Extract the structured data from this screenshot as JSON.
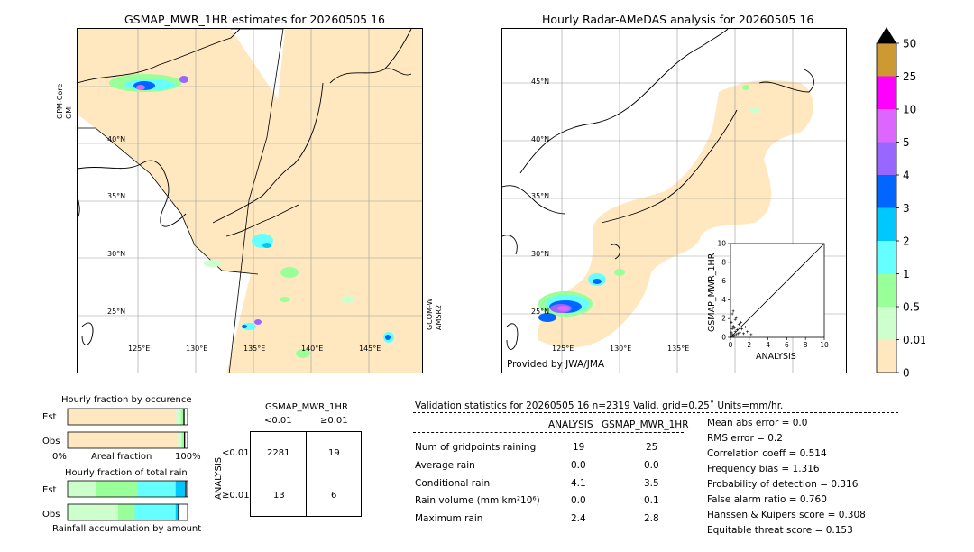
{
  "left_map": {
    "title": "GSMAP_MWR_1HR estimates for 20260505 16",
    "side_label_left_1": "GPM-Core",
    "side_label_left_2": "GMI",
    "side_label_right_1": "GCOM-W",
    "side_label_right_2": "AMSR2",
    "lat_labels": [
      "40°N",
      "35°N",
      "30°N",
      "25°N"
    ],
    "lon_labels": [
      "125°E",
      "130°E",
      "135°E",
      "140°E",
      "145°E"
    ]
  },
  "right_map": {
    "title": "Hourly Radar-AMeDAS analysis for 20260505 16",
    "credit": "Provided by JWA/JMA",
    "lat_labels": [
      "45°N",
      "40°N",
      "35°N",
      "30°N",
      "25°N"
    ],
    "lon_labels": [
      "125°E",
      "130°E",
      "135°E"
    ]
  },
  "colorbar": {
    "labels": [
      "50",
      "25",
      "10",
      "5",
      "4",
      "3",
      "2",
      "1",
      "0.5",
      "0.01",
      "0"
    ],
    "colors": [
      "#cc9933",
      "#ff00ff",
      "#dd66ff",
      "#9966ff",
      "#0066ff",
      "#00c8ff",
      "#66ffff",
      "#99ff99",
      "#ccffcc",
      "#ffe8c0"
    ],
    "over_color": "#000000"
  },
  "chart_data": [
    {
      "type": "scatter",
      "title": "",
      "xlabel": "ANALYSIS",
      "ylabel": "GSMAP_MWR_1HR",
      "xlim": [
        0,
        10
      ],
      "ylim": [
        0,
        10
      ],
      "xticks": [
        "0",
        "2",
        "4",
        "6",
        "8",
        "10"
      ],
      "yticks": [
        "0",
        "2",
        "4",
        "6",
        "8",
        "10"
      ],
      "points": [
        [
          0.1,
          0.1
        ],
        [
          0.2,
          0.3
        ],
        [
          0.3,
          0.1
        ],
        [
          0.1,
          0.5
        ],
        [
          0.4,
          0.2
        ],
        [
          0.5,
          0.6
        ],
        [
          0.2,
          0.9
        ],
        [
          0.6,
          0.3
        ],
        [
          0.8,
          0.4
        ],
        [
          0.3,
          1.2
        ],
        [
          0.1,
          1.6
        ],
        [
          0.7,
          0.8
        ],
        [
          1.0,
          0.5
        ],
        [
          0.4,
          1.0
        ],
        [
          1.2,
          0.9
        ],
        [
          0.9,
          1.4
        ],
        [
          0.5,
          1.9
        ],
        [
          1.4,
          0.4
        ],
        [
          0.2,
          2.5
        ],
        [
          1.6,
          1.1
        ],
        [
          1.8,
          0.6
        ],
        [
          0.3,
          2.8
        ],
        [
          1.1,
          1.6
        ],
        [
          2.2,
          0.3
        ],
        [
          0.6,
          2.1
        ]
      ]
    },
    {
      "type": "bar",
      "title": "Hourly fraction by occurence",
      "categories": [
        "Est",
        "Obs"
      ],
      "xlabel": "Areal fraction",
      "xtick_left": "0%",
      "xtick_right": "100%",
      "series": [
        {
          "color": "#ffe8c0",
          "values": [
            0.905,
            0.92
          ]
        },
        {
          "color": "#ccffcc",
          "values": [
            0.04,
            0.03
          ]
        },
        {
          "color": "#99ff99",
          "values": [
            0.02,
            0.02
          ]
        },
        {
          "color": "#000000",
          "values": [
            0.01,
            0.01
          ]
        }
      ]
    },
    {
      "type": "bar",
      "title": "Hourly fraction of total rain",
      "categories": [
        "Est",
        "Obs"
      ],
      "xlabel": "Rainfall accumulation by amount",
      "series": [
        {
          "color": "#ccffcc",
          "values": [
            0.24,
            0.42
          ]
        },
        {
          "color": "#99ff99",
          "values": [
            0.34,
            0.14
          ]
        },
        {
          "color": "#66ffff",
          "values": [
            0.32,
            0.34
          ]
        },
        {
          "color": "#00c8ff",
          "values": [
            0.08,
            0.02
          ]
        },
        {
          "color": "#000000",
          "values": [
            0.01,
            0.01
          ]
        }
      ]
    }
  ],
  "contingency": {
    "title": "GSMAP_MWR_1HR",
    "col_labels": [
      "<0.01",
      "≥0.01"
    ],
    "row_axis_label": "ANALYSIS",
    "row_labels": [
      "<0.01",
      "≥0.01"
    ],
    "cells": [
      [
        "2281",
        "19"
      ],
      [
        "13",
        "6"
      ]
    ]
  },
  "validation": {
    "header": "Validation statistics for 20260505 16  n=2319 Valid. grid=0.25˚ Units=mm/hr.",
    "col_analysis": "ANALYSIS",
    "col_gsmap": "GSMAP_MWR_1HR",
    "rows": [
      {
        "label": "Num of gridpoints raining",
        "analysis": "19",
        "gsmap": "25"
      },
      {
        "label": "Average rain",
        "analysis": "0.0",
        "gsmap": "0.0"
      },
      {
        "label": "Conditional rain",
        "analysis": "4.1",
        "gsmap": "3.5"
      },
      {
        "label": "Rain volume (mm km²10⁶)",
        "analysis": "0.0",
        "gsmap": "0.1"
      },
      {
        "label": "Maximum rain",
        "analysis": "2.4",
        "gsmap": "2.8"
      }
    ],
    "scores": [
      "Mean abs error =    0.0",
      "RMS error =    0.2",
      "Correlation coeff =  0.514",
      "Frequency bias =  1.316",
      "Probability of detection =  0.316",
      "False alarm ratio =  0.760",
      "Hanssen & Kuipers score =  0.308",
      "Equitable threat score =  0.153"
    ]
  }
}
